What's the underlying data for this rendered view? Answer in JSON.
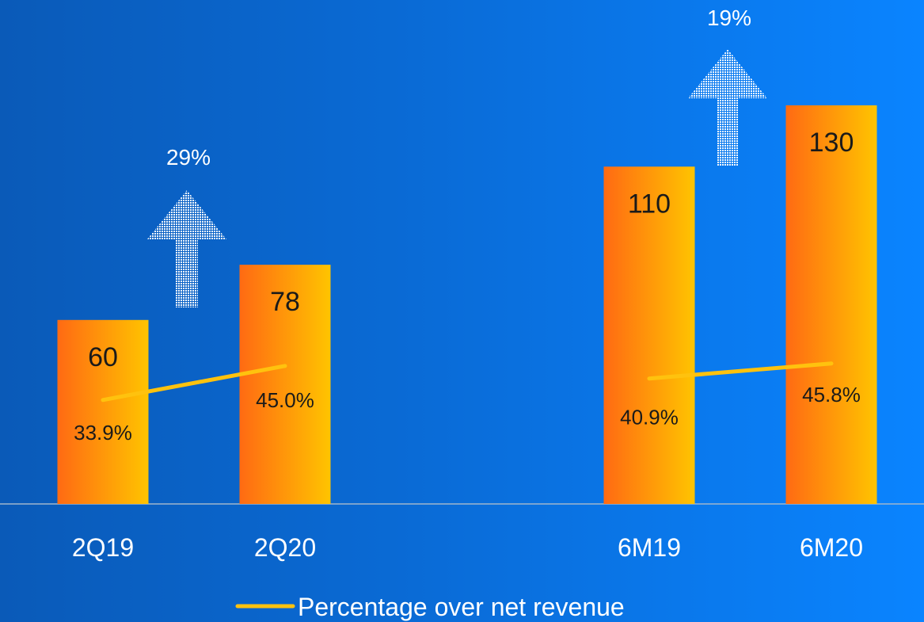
{
  "chart_data": {
    "type": "bar",
    "categories": [
      "2Q19",
      "2Q20",
      "6M19",
      "6M20"
    ],
    "values": [
      60,
      78,
      110,
      130
    ],
    "ylim": [
      0,
      160
    ],
    "line_series": {
      "name": "Percentage over net revenue",
      "values": [
        33.9,
        45.0,
        40.9,
        45.8
      ],
      "labels": [
        "33.9%",
        "45.0%",
        "40.9%",
        "45.8%"
      ],
      "ylim": [
        0,
        160
      ]
    },
    "value_labels": [
      "60",
      "78",
      "110",
      "130"
    ],
    "annotations": [
      {
        "label": "29%",
        "between": [
          "2Q19",
          "2Q20"
        ]
      },
      {
        "label": "19%",
        "between": [
          "6M19",
          "6M20"
        ]
      }
    ],
    "legend_position": "bottom",
    "grid": false
  },
  "colors": {
    "bar_start": "#ff6a13",
    "bar_end": "#ffc400",
    "line": "#ffc20e",
    "axis": "#9fb6cc"
  }
}
